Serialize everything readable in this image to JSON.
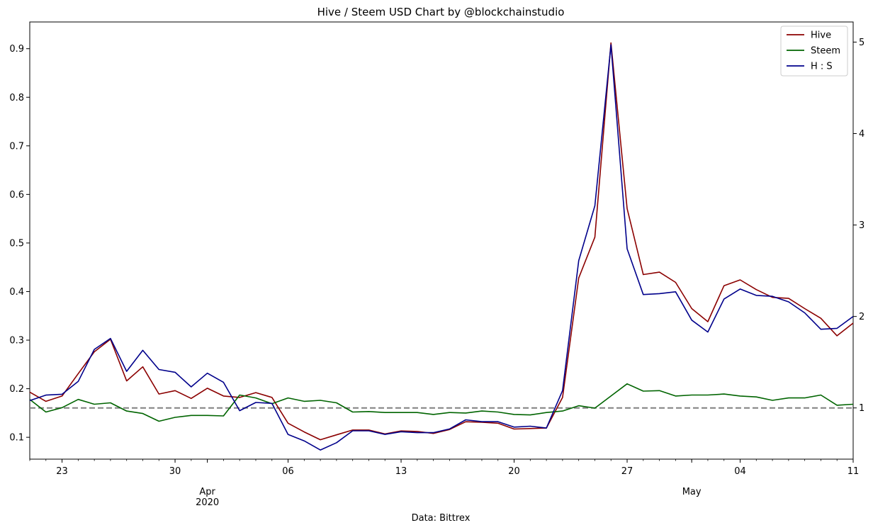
{
  "chart_data": {
    "type": "line",
    "title": "Hive / Steem USD Chart by @blockchainstudio",
    "xlabel": "Data: Bittrex",
    "x_start_day": "2020-03-21",
    "x_end_day": "2020-05-11",
    "x_ticks": [
      {
        "date": "2020-03-23",
        "label": "23"
      },
      {
        "date": "2020-03-30",
        "label": "30"
      },
      {
        "date": "2020-04-01",
        "label": "Apr",
        "sublabel": "2020"
      },
      {
        "date": "2020-04-06",
        "label": "06"
      },
      {
        "date": "2020-04-13",
        "label": "13"
      },
      {
        "date": "2020-04-20",
        "label": "20"
      },
      {
        "date": "2020-04-27",
        "label": "27"
      },
      {
        "date": "2020-05-01",
        "label": "May"
      },
      {
        "date": "2020-05-04",
        "label": "04"
      },
      {
        "date": "2020-05-11",
        "label": "11"
      }
    ],
    "y_left": {
      "lim": [
        0.055,
        0.955
      ],
      "ticks": [
        0.1,
        0.2,
        0.3,
        0.4,
        0.5,
        0.6,
        0.7,
        0.8,
        0.9
      ],
      "tick_labels": [
        "0.1",
        "0.2",
        "0.3",
        "0.4",
        "0.5",
        "0.6",
        "0.7",
        "0.8",
        "0.9"
      ]
    },
    "y_right": {
      "lim": [
        0.44,
        5.22
      ],
      "ticks": [
        1,
        2,
        3,
        4,
        5
      ],
      "tick_labels": [
        "1",
        "2",
        "3",
        "4",
        "5"
      ]
    },
    "reference_line": {
      "axis": "right",
      "value": 1.0,
      "color": "#808080",
      "style": "dashed"
    },
    "legend_position": "top-right",
    "series": [
      {
        "name": "Hive",
        "axis": "left",
        "color": "#8b0000",
        "values": [
          0.193,
          0.174,
          0.185,
          0.231,
          0.276,
          0.302,
          0.216,
          0.245,
          0.189,
          0.196,
          0.18,
          0.201,
          0.185,
          0.182,
          0.192,
          0.182,
          0.129,
          0.111,
          0.095,
          0.105,
          0.115,
          0.115,
          0.107,
          0.113,
          0.112,
          0.108,
          0.116,
          0.132,
          0.131,
          0.129,
          0.117,
          0.118,
          0.119,
          0.182,
          0.428,
          0.512,
          0.912,
          0.571,
          0.435,
          0.44,
          0.419,
          0.365,
          0.338,
          0.412,
          0.424,
          0.404,
          0.388,
          0.386,
          0.365,
          0.345,
          0.309,
          0.335
        ]
      },
      {
        "name": "Steem",
        "axis": "left",
        "color": "#006400",
        "values": [
          0.178,
          0.152,
          0.161,
          0.178,
          0.168,
          0.171,
          0.154,
          0.149,
          0.133,
          0.141,
          0.145,
          0.145,
          0.144,
          0.187,
          0.181,
          0.169,
          0.181,
          0.174,
          0.176,
          0.171,
          0.152,
          0.153,
          0.151,
          0.151,
          0.151,
          0.147,
          0.151,
          0.15,
          0.154,
          0.152,
          0.147,
          0.146,
          0.151,
          0.154,
          0.165,
          0.16,
          0.185,
          0.21,
          0.195,
          0.196,
          0.185,
          0.187,
          0.187,
          0.189,
          0.185,
          0.183,
          0.176,
          0.181,
          0.181,
          0.187,
          0.166,
          0.168
        ]
      },
      {
        "name": "H : S",
        "axis": "right",
        "color": "#00008b",
        "values": [
          1.08,
          1.14,
          1.15,
          1.29,
          1.64,
          1.76,
          1.4,
          1.63,
          1.42,
          1.39,
          1.23,
          1.38,
          1.28,
          0.97,
          1.06,
          1.05,
          0.71,
          0.64,
          0.54,
          0.62,
          0.75,
          0.75,
          0.71,
          0.74,
          0.73,
          0.73,
          0.77,
          0.87,
          0.85,
          0.85,
          0.79,
          0.8,
          0.78,
          1.19,
          2.61,
          3.21,
          4.97,
          2.74,
          2.24,
          2.25,
          2.27,
          1.96,
          1.83,
          2.19,
          2.3,
          2.23,
          2.22,
          2.16,
          2.04,
          1.86,
          1.87,
          2.0
        ]
      }
    ]
  }
}
